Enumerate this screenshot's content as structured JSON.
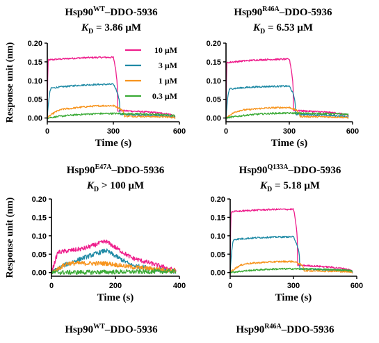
{
  "colors": {
    "10": "#ee1e8c",
    "3": "#1f8aa5",
    "1": "#f7941d",
    "0.3": "#3aaa35"
  },
  "legend": [
    {
      "label": "10 μM",
      "key": "10"
    },
    {
      "label": "3 μM",
      "key": "3"
    },
    {
      "label": "1 μM",
      "key": "1"
    },
    {
      "label": "0.3 μM",
      "key": "0.3"
    }
  ],
  "bottom_titles": [
    {
      "base": "Hsp90",
      "sup": "WT",
      "rest": "–DDO-5936"
    },
    {
      "base": "Hsp90",
      "sup": "R46A",
      "rest": "–DDO-5936"
    }
  ],
  "chart_data": [
    {
      "type": "line",
      "title": {
        "base": "Hsp90",
        "sup": "WT",
        "rest": "–DDO-5936"
      },
      "kd": {
        "sym": "K",
        "sub": "D",
        "rel": " = ",
        "val": "3.86 μM"
      },
      "xlabel": "Time (s)",
      "ylabel": "Response unit (nm)",
      "xlim": [
        0,
        600
      ],
      "ylim": [
        -0.01,
        0.2
      ],
      "xticks": [
        "0",
        "300",
        "600"
      ],
      "xtick_values": [
        0,
        300,
        600
      ],
      "yticks": [
        "0.00",
        "0.05",
        "0.10",
        "0.15",
        "0.20"
      ],
      "ytick_values": [
        0,
        0.05,
        0.1,
        0.15,
        0.2
      ],
      "legend": "top-right",
      "series": [
        {
          "key": "10",
          "name": "10 μM",
          "plateau": 0.16,
          "x": [
            0,
            5,
            300,
            320,
            580
          ],
          "y": [
            0,
            0.155,
            0.162,
            0.02,
            0.002
          ]
        },
        {
          "key": "3",
          "name": "3 μM",
          "plateau": 0.09,
          "x": [
            0,
            20,
            300,
            330,
            580
          ],
          "y": [
            0,
            0.08,
            0.09,
            0.01,
            0
          ]
        },
        {
          "key": "1",
          "name": "1 μM",
          "plateau": 0.033,
          "x": [
            0,
            100,
            300,
            350,
            580
          ],
          "y": [
            0,
            0.025,
            0.033,
            0.005,
            0
          ]
        },
        {
          "key": "0.3",
          "name": "0.3 μM",
          "plateau": 0.012,
          "x": [
            0,
            300,
            580
          ],
          "y": [
            0,
            0.012,
            0.005
          ]
        }
      ]
    },
    {
      "type": "line",
      "title": {
        "base": "Hsp90",
        "sup": "R46A",
        "rest": "–DDO-5936"
      },
      "kd": {
        "sym": "K",
        "sub": "D",
        "rel": " = ",
        "val": "6.53 μM"
      },
      "xlabel": "Time (s)",
      "ylabel": "",
      "xlim": [
        0,
        600
      ],
      "ylim": [
        -0.01,
        0.2
      ],
      "xticks": [
        "0",
        "300",
        "600"
      ],
      "xtick_values": [
        0,
        300,
        600
      ],
      "yticks": [
        "0.00",
        "0.05",
        "0.10",
        "0.15",
        "0.20"
      ],
      "ytick_values": [
        0,
        0.05,
        0.1,
        0.15,
        0.2
      ],
      "series": [
        {
          "key": "10",
          "name": "10 μM",
          "plateau": 0.155,
          "x": [
            0,
            5,
            300,
            320,
            580
          ],
          "y": [
            0,
            0.148,
            0.157,
            0.02,
            0.003
          ]
        },
        {
          "key": "3",
          "name": "3 μM",
          "plateau": 0.085,
          "x": [
            0,
            20,
            300,
            330,
            580
          ],
          "y": [
            0,
            0.078,
            0.085,
            0.01,
            0
          ]
        },
        {
          "key": "1",
          "name": "1 μM",
          "plateau": 0.028,
          "x": [
            0,
            100,
            300,
            350,
            580
          ],
          "y": [
            0,
            0.022,
            0.028,
            0.004,
            0
          ]
        },
        {
          "key": "0.3",
          "name": "0.3 μM",
          "plateau": 0.013,
          "x": [
            0,
            300,
            580
          ],
          "y": [
            0,
            0.013,
            0.008
          ]
        }
      ]
    },
    {
      "type": "line",
      "title": {
        "base": "Hsp90",
        "sup": "E47A",
        "rest": "–DDO-5936"
      },
      "kd": {
        "sym": "K",
        "sub": "D",
        "rel": " > ",
        "val": "100 μM"
      },
      "xlabel": "Time (s)",
      "ylabel": "Response unit (nm)",
      "xlim": [
        0,
        400
      ],
      "ylim": [
        -0.01,
        0.2
      ],
      "xticks": [
        "0",
        "200",
        "400"
      ],
      "xtick_values": [
        0,
        200,
        400
      ],
      "yticks": [
        "0.00",
        "0.05",
        "0.10",
        "0.15",
        "0.20"
      ],
      "ytick_values": [
        0,
        0.05,
        0.1,
        0.15,
        0.2
      ],
      "series": [
        {
          "key": "10",
          "name": "10 μM",
          "x": [
            0,
            20,
            100,
            170,
            250,
            390
          ],
          "y": [
            0,
            0.055,
            0.065,
            0.085,
            0.04,
            0.005
          ]
        },
        {
          "key": "3",
          "name": "3 μM",
          "x": [
            0,
            40,
            100,
            170,
            250,
            390
          ],
          "y": [
            0,
            0.02,
            0.04,
            0.06,
            0.02,
            0
          ]
        },
        {
          "key": "1",
          "name": "1 μM",
          "x": [
            0,
            50,
            170,
            250,
            390
          ],
          "y": [
            0,
            0.025,
            0.025,
            0.015,
            0.005
          ]
        },
        {
          "key": "0.3",
          "name": "0.3 μM",
          "x": [
            0,
            390
          ],
          "y": [
            0,
            0.003
          ]
        }
      ]
    },
    {
      "type": "line",
      "title": {
        "base": "Hsp90",
        "sup": "Q133A",
        "rest": "–DDO-5936"
      },
      "kd": {
        "sym": "K",
        "sub": "D",
        "rel": " = ",
        "val": "5.18 μM"
      },
      "xlabel": "Time (s)",
      "ylabel": "",
      "xlim": [
        0,
        600
      ],
      "ylim": [
        -0.01,
        0.2
      ],
      "xticks": [
        "0",
        "300",
        "600"
      ],
      "xtick_values": [
        0,
        300,
        600
      ],
      "yticks": [
        "0.00",
        "0.05",
        "0.10",
        "0.15",
        "0.20"
      ],
      "ytick_values": [
        0,
        0.05,
        0.1,
        0.15,
        0.2
      ],
      "series": [
        {
          "key": "10",
          "name": "10 μM",
          "plateau": 0.17,
          "x": [
            0,
            5,
            300,
            320,
            580
          ],
          "y": [
            0,
            0.165,
            0.172,
            0.02,
            0
          ]
        },
        {
          "key": "3",
          "name": "3 μM",
          "plateau": 0.095,
          "x": [
            0,
            20,
            300,
            330,
            580
          ],
          "y": [
            0,
            0.09,
            0.097,
            0.01,
            0
          ]
        },
        {
          "key": "1",
          "name": "1 μM",
          "plateau": 0.03,
          "x": [
            0,
            100,
            300,
            350,
            580
          ],
          "y": [
            0,
            0.025,
            0.03,
            0.005,
            0
          ]
        },
        {
          "key": "0.3",
          "name": "0.3 μM",
          "plateau": 0.012,
          "x": [
            0,
            300,
            580
          ],
          "y": [
            0,
            0.01,
            0.003
          ]
        }
      ]
    }
  ]
}
